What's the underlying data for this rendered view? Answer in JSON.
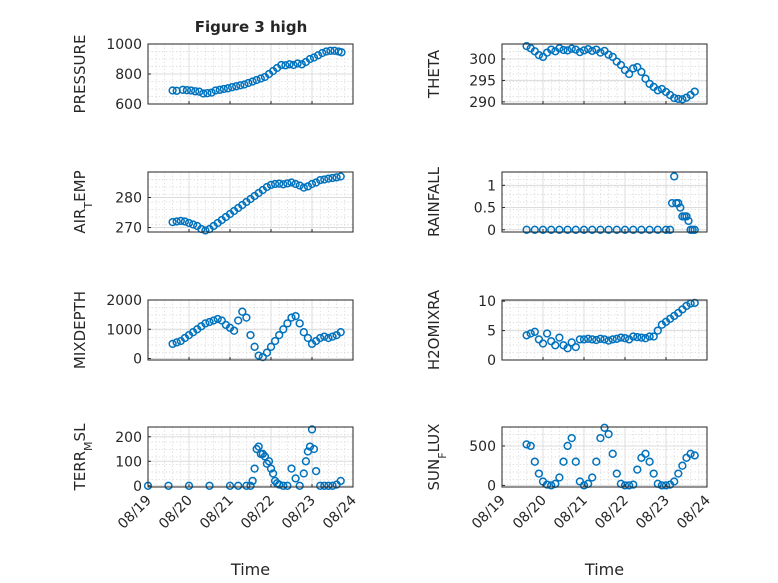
{
  "figure": {
    "title": "Figure 3 high"
  },
  "chart_data": [
    {
      "type": "scatter",
      "ylabel": "PRESSURE",
      "xlabel": "",
      "ylim": [
        600,
        1000
      ],
      "yticks": [
        600,
        800,
        1000
      ],
      "xticks": [],
      "grid": true,
      "marker": "open-circle",
      "color": "#0072BD",
      "x": [
        0.6,
        0.7,
        0.85,
        0.95,
        1.05,
        1.15,
        1.25,
        1.35,
        1.45,
        1.55,
        1.65,
        1.75,
        1.85,
        1.95,
        2.05,
        2.15,
        2.25,
        2.35,
        2.45,
        2.55,
        2.65,
        2.75,
        2.85,
        2.95,
        3.05,
        3.15,
        3.25,
        3.35,
        3.45,
        3.55,
        3.65,
        3.75,
        3.85,
        3.95,
        4.05,
        4.15,
        4.25,
        4.35,
        4.45,
        4.55,
        4.65,
        4.72
      ],
      "y": [
        690,
        688,
        695,
        692,
        690,
        685,
        682,
        670,
        672,
        676,
        690,
        695,
        700,
        705,
        712,
        718,
        725,
        730,
        740,
        750,
        760,
        770,
        780,
        800,
        820,
        840,
        860,
        858,
        865,
        860,
        870,
        865,
        880,
        900,
        910,
        925,
        940,
        950,
        955,
        955,
        950,
        945
      ]
    },
    {
      "type": "scatter",
      "ylabel": "THETA",
      "xlabel": "",
      "ylim": [
        289.5,
        303.5
      ],
      "yticks": [
        290,
        295,
        300
      ],
      "xticks": [],
      "grid": true,
      "marker": "open-circle",
      "color": "#0072BD",
      "x": [
        0.6,
        0.7,
        0.8,
        0.9,
        1.0,
        1.1,
        1.2,
        1.3,
        1.4,
        1.5,
        1.6,
        1.7,
        1.8,
        1.9,
        2.0,
        2.1,
        2.2,
        2.3,
        2.4,
        2.5,
        2.6,
        2.7,
        2.8,
        2.9,
        3.0,
        3.1,
        3.2,
        3.3,
        3.4,
        3.5,
        3.6,
        3.7,
        3.8,
        3.9,
        4.0,
        4.1,
        4.2,
        4.3,
        4.4,
        4.5,
        4.6,
        4.7
      ],
      "y": [
        303,
        302.5,
        301.8,
        300.9,
        300.5,
        301.5,
        302.2,
        301.8,
        302.5,
        302.1,
        302,
        302.4,
        302.2,
        301.6,
        302,
        302.3,
        301.9,
        302.2,
        301.5,
        301.9,
        301,
        300.5,
        299.4,
        298.6,
        297.4,
        296.5,
        297.8,
        298.1,
        297,
        295.4,
        294.2,
        293.5,
        292.7,
        293,
        292.3,
        291.6,
        290.9,
        290.7,
        290.6,
        291,
        291.6,
        292.4
      ]
    },
    {
      "type": "scatter",
      "ylabel": "AIR_TEMP",
      "xlabel": "",
      "ylim": [
        268.5,
        288.5
      ],
      "yticks": [
        270,
        280
      ],
      "xticks": [],
      "grid": true,
      "marker": "open-circle",
      "color": "#0072BD",
      "x": [
        0.6,
        0.7,
        0.8,
        0.9,
        1.0,
        1.1,
        1.2,
        1.3,
        1.4,
        1.5,
        1.6,
        1.7,
        1.8,
        1.9,
        2.0,
        2.1,
        2.2,
        2.3,
        2.4,
        2.5,
        2.6,
        2.7,
        2.8,
        2.9,
        3.0,
        3.1,
        3.2,
        3.3,
        3.4,
        3.5,
        3.6,
        3.7,
        3.8,
        3.9,
        4.0,
        4.1,
        4.2,
        4.3,
        4.4,
        4.5,
        4.6,
        4.7
      ],
      "y": [
        271.8,
        272,
        272.2,
        272,
        271.5,
        271,
        270.5,
        269.5,
        269,
        269.5,
        270.5,
        271.5,
        272.5,
        273.5,
        274.5,
        275.5,
        276.5,
        277.5,
        278.5,
        279.5,
        280.5,
        281.5,
        282.5,
        283.5,
        284.2,
        284.5,
        284.6,
        284.4,
        284.7,
        285,
        284.5,
        284,
        283.3,
        283.7,
        284.5,
        285,
        285.8,
        286,
        286.3,
        286.5,
        286.7,
        287
      ]
    },
    {
      "type": "scatter",
      "ylabel": "RAINFALL",
      "xlabel": "",
      "ylim": [
        -0.05,
        1.3
      ],
      "yticks": [
        0,
        0.5,
        1
      ],
      "xticks": [],
      "grid": true,
      "marker": "open-circle",
      "color": "#0072BD",
      "x": [
        0.6,
        0.8,
        1.0,
        1.2,
        1.4,
        1.6,
        1.8,
        2.0,
        2.2,
        2.4,
        2.6,
        2.8,
        3.0,
        3.2,
        3.4,
        3.6,
        3.8,
        4.0,
        4.1,
        4.15,
        4.2,
        4.25,
        4.3,
        4.35,
        4.4,
        4.45,
        4.5,
        4.55,
        4.6,
        4.65,
        4.7
      ],
      "y": [
        0,
        0,
        0,
        0,
        0,
        0,
        0,
        0,
        0,
        0,
        0,
        0,
        0,
        0,
        0,
        0,
        0,
        0,
        0,
        0.6,
        1.2,
        0.6,
        0.6,
        0.5,
        0.3,
        0.3,
        0.3,
        0.2,
        0,
        0,
        0
      ]
    },
    {
      "type": "scatter",
      "ylabel": "MIXDEPTH",
      "xlabel": "",
      "ylim": [
        -50,
        2000
      ],
      "yticks": [
        0,
        1000,
        2000
      ],
      "xticks": [],
      "grid": true,
      "marker": "open-circle",
      "color": "#0072BD",
      "x": [
        0.6,
        0.7,
        0.8,
        0.9,
        1.0,
        1.1,
        1.2,
        1.3,
        1.4,
        1.5,
        1.6,
        1.7,
        1.8,
        1.9,
        2.0,
        2.1,
        2.2,
        2.3,
        2.4,
        2.5,
        2.6,
        2.7,
        2.8,
        2.9,
        3.0,
        3.1,
        3.2,
        3.3,
        3.4,
        3.5,
        3.6,
        3.7,
        3.8,
        3.9,
        4.0,
        4.1,
        4.2,
        4.3,
        4.4,
        4.5,
        4.6,
        4.7
      ],
      "y": [
        500,
        550,
        600,
        700,
        800,
        900,
        1000,
        1100,
        1200,
        1250,
        1300,
        1350,
        1300,
        1150,
        1050,
        950,
        1300,
        1600,
        1400,
        800,
        400,
        100,
        50,
        200,
        400,
        600,
        800,
        1000,
        1200,
        1400,
        1450,
        1200,
        900,
        700,
        500,
        600,
        700,
        750,
        700,
        750,
        800,
        900
      ]
    },
    {
      "type": "scatter",
      "ylabel": "H2OMIXRA",
      "xlabel": "",
      "ylim": [
        0,
        10.2
      ],
      "yticks": [
        0,
        5,
        10
      ],
      "xticks": [],
      "grid": true,
      "marker": "open-circle",
      "color": "#0072BD",
      "x": [
        0.6,
        0.7,
        0.8,
        0.9,
        1.0,
        1.1,
        1.2,
        1.3,
        1.4,
        1.5,
        1.6,
        1.7,
        1.8,
        1.9,
        2.0,
        2.1,
        2.2,
        2.3,
        2.4,
        2.5,
        2.6,
        2.7,
        2.8,
        2.9,
        3.0,
        3.1,
        3.2,
        3.3,
        3.4,
        3.5,
        3.6,
        3.7,
        3.8,
        3.9,
        4.0,
        4.1,
        4.2,
        4.3,
        4.4,
        4.5,
        4.6,
        4.7
      ],
      "y": [
        4.2,
        4.5,
        4.8,
        3.5,
        2.8,
        4.5,
        3.2,
        2.5,
        3.8,
        2.5,
        2,
        3,
        2.2,
        3.5,
        3.5,
        3.6,
        3.5,
        3.4,
        3.6,
        3.5,
        3.3,
        3.5,
        3.6,
        3.8,
        3.7,
        3.5,
        4,
        3.9,
        3.8,
        3.7,
        4,
        4,
        5,
        6,
        6.5,
        7,
        7.5,
        8,
        8.6,
        9.2,
        9.6,
        9.7
      ]
    },
    {
      "type": "scatter",
      "ylabel": "TERR_MSL",
      "xlabel": "Time",
      "ylim": [
        -5,
        240
      ],
      "yticks": [
        0,
        100,
        200
      ],
      "xticks": [
        "08/19",
        "08/20",
        "08/21",
        "08/22",
        "08/23",
        "08/24"
      ],
      "grid": true,
      "marker": "open-circle",
      "color": "#0072BD",
      "x": [
        0.0,
        0.5,
        1.0,
        1.5,
        2.0,
        2.2,
        2.4,
        2.5,
        2.55,
        2.6,
        2.65,
        2.7,
        2.75,
        2.8,
        2.85,
        2.9,
        2.95,
        3.0,
        3.05,
        3.1,
        3.15,
        3.2,
        3.3,
        3.4,
        3.5,
        3.6,
        3.7,
        3.8,
        3.85,
        3.9,
        3.95,
        4.0,
        4.05,
        4.1,
        4.2,
        4.3,
        4.4,
        4.5,
        4.6,
        4.7
      ],
      "y": [
        0,
        0,
        0,
        0,
        0,
        0,
        0,
        0,
        20,
        70,
        150,
        160,
        130,
        130,
        120,
        90,
        100,
        70,
        50,
        20,
        10,
        5,
        0,
        0,
        70,
        30,
        0,
        50,
        100,
        140,
        160,
        230,
        150,
        60,
        0,
        0,
        0,
        0,
        5,
        20
      ]
    },
    {
      "type": "scatter",
      "ylabel": "SUN_FLUX",
      "xlabel": "Time",
      "ylim": [
        -20,
        740
      ],
      "yticks": [
        0,
        500
      ],
      "xticks": [
        "08/19",
        "08/20",
        "08/21",
        "08/22",
        "08/23",
        "08/24"
      ],
      "grid": true,
      "marker": "open-circle",
      "color": "#0072BD",
      "x": [
        0.6,
        0.7,
        0.8,
        0.9,
        1.0,
        1.1,
        1.2,
        1.3,
        1.4,
        1.5,
        1.6,
        1.7,
        1.8,
        1.9,
        2.0,
        2.1,
        2.2,
        2.3,
        2.4,
        2.5,
        2.6,
        2.7,
        2.8,
        2.9,
        3.0,
        3.1,
        3.2,
        3.3,
        3.4,
        3.5,
        3.6,
        3.7,
        3.8,
        3.9,
        4.0,
        4.1,
        4.2,
        4.3,
        4.4,
        4.5,
        4.6,
        4.7
      ],
      "y": [
        520,
        500,
        300,
        150,
        50,
        10,
        0,
        20,
        100,
        300,
        500,
        600,
        300,
        50,
        0,
        20,
        100,
        300,
        600,
        730,
        650,
        400,
        150,
        20,
        0,
        0,
        10,
        200,
        350,
        400,
        300,
        150,
        20,
        0,
        0,
        10,
        50,
        150,
        250,
        350,
        400,
        380
      ]
    }
  ]
}
